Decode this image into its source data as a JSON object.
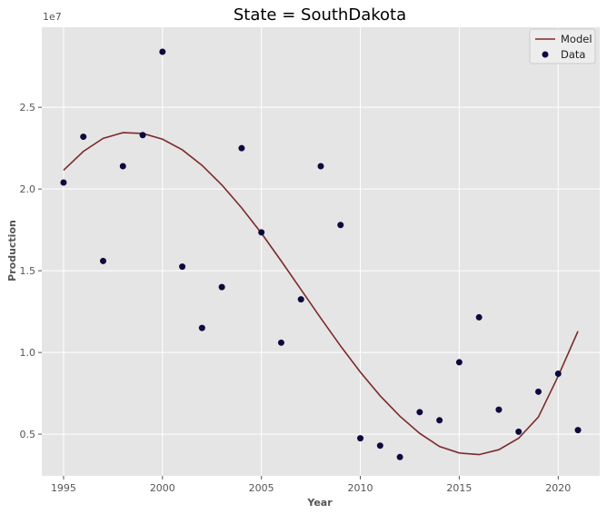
{
  "chart_data": {
    "type": "scatter",
    "title": "State = SouthDakota",
    "xlabel": "Year",
    "ylabel": "Production",
    "y_multiplier_label": "1e7",
    "xlim": [
      1993.9,
      2022.1
    ],
    "ylim": [
      0.245,
      2.99
    ],
    "x_ticks": [
      1995,
      2000,
      2005,
      2010,
      2015,
      2020
    ],
    "x_tick_labels": [
      "1995",
      "2000",
      "2005",
      "2010",
      "2015",
      "2020"
    ],
    "y_ticks": [
      0.5,
      1.0,
      1.5,
      2.0,
      2.5
    ],
    "y_tick_labels": [
      "0.5",
      "1.0",
      "1.5",
      "2.0",
      "2.5"
    ],
    "grid": true,
    "legend_position": "top-right",
    "series": [
      {
        "name": "Model",
        "kind": "line",
        "color": "#7b2a2a",
        "points": [
          {
            "x": 1995,
            "y": 2.115
          },
          {
            "x": 1996,
            "y": 2.23
          },
          {
            "x": 1997,
            "y": 2.31
          },
          {
            "x": 1998,
            "y": 2.345
          },
          {
            "x": 1999,
            "y": 2.34
          },
          {
            "x": 2000,
            "y": 2.305
          },
          {
            "x": 2001,
            "y": 2.24
          },
          {
            "x": 2002,
            "y": 2.145
          },
          {
            "x": 2003,
            "y": 2.025
          },
          {
            "x": 2004,
            "y": 1.885
          },
          {
            "x": 2005,
            "y": 1.73
          },
          {
            "x": 2006,
            "y": 1.56
          },
          {
            "x": 2007,
            "y": 1.385
          },
          {
            "x": 2008,
            "y": 1.21
          },
          {
            "x": 2009,
            "y": 1.04
          },
          {
            "x": 2010,
            "y": 0.88
          },
          {
            "x": 2011,
            "y": 0.735
          },
          {
            "x": 2012,
            "y": 0.61
          },
          {
            "x": 2013,
            "y": 0.505
          },
          {
            "x": 2014,
            "y": 0.425
          },
          {
            "x": 2015,
            "y": 0.385
          },
          {
            "x": 2016,
            "y": 0.375
          },
          {
            "x": 2017,
            "y": 0.405
          },
          {
            "x": 2018,
            "y": 0.475
          },
          {
            "x": 2019,
            "y": 0.605
          },
          {
            "x": 2020,
            "y": 0.855
          },
          {
            "x": 2021,
            "y": 1.13
          }
        ]
      },
      {
        "name": "Data",
        "kind": "scatter",
        "color": "#0d0a3d",
        "points": [
          {
            "x": 1995,
            "y": 2.04
          },
          {
            "x": 1996,
            "y": 2.32
          },
          {
            "x": 1997,
            "y": 1.56
          },
          {
            "x": 1998,
            "y": 2.14
          },
          {
            "x": 1999,
            "y": 2.33
          },
          {
            "x": 2000,
            "y": 2.84
          },
          {
            "x": 2001,
            "y": 1.525
          },
          {
            "x": 2002,
            "y": 1.15
          },
          {
            "x": 2003,
            "y": 1.4
          },
          {
            "x": 2004,
            "y": 2.25
          },
          {
            "x": 2005,
            "y": 1.735
          },
          {
            "x": 2006,
            "y": 1.06
          },
          {
            "x": 2007,
            "y": 1.325
          },
          {
            "x": 2008,
            "y": 2.14
          },
          {
            "x": 2009,
            "y": 1.78
          },
          {
            "x": 2010,
            "y": 0.475
          },
          {
            "x": 2011,
            "y": 0.43
          },
          {
            "x": 2012,
            "y": 0.36
          },
          {
            "x": 2013,
            "y": 0.635
          },
          {
            "x": 2014,
            "y": 0.585
          },
          {
            "x": 2015,
            "y": 0.94
          },
          {
            "x": 2016,
            "y": 1.215
          },
          {
            "x": 2017,
            "y": 0.65
          },
          {
            "x": 2018,
            "y": 0.515
          },
          {
            "x": 2019,
            "y": 0.76
          },
          {
            "x": 2020,
            "y": 0.87
          },
          {
            "x": 2021,
            "y": 0.525
          }
        ]
      }
    ],
    "colors": {
      "plot_background": "#e5e5e5",
      "grid": "#ffffff",
      "legend_background": "#ededed",
      "legend_border": "#cccccc"
    }
  }
}
